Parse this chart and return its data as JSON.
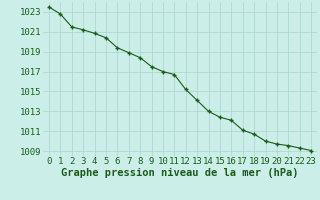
{
  "x": [
    0,
    1,
    2,
    3,
    4,
    5,
    6,
    7,
    8,
    9,
    10,
    11,
    12,
    13,
    14,
    15,
    16,
    17,
    18,
    19,
    20,
    21,
    22,
    23
  ],
  "y": [
    1023.5,
    1022.8,
    1021.5,
    1021.2,
    1020.85,
    1020.4,
    1019.4,
    1018.9,
    1018.4,
    1017.5,
    1017.0,
    1016.7,
    1015.2,
    1014.1,
    1013.0,
    1012.4,
    1012.1,
    1011.1,
    1010.7,
    1010.0,
    1009.7,
    1009.55,
    1009.3,
    1009.05
  ],
  "ylim": [
    1008.5,
    1024.0
  ],
  "yticks": [
    1009,
    1011,
    1013,
    1015,
    1017,
    1019,
    1021,
    1023
  ],
  "xticks": [
    0,
    1,
    2,
    3,
    4,
    5,
    6,
    7,
    8,
    9,
    10,
    11,
    12,
    13,
    14,
    15,
    16,
    17,
    18,
    19,
    20,
    21,
    22,
    23
  ],
  "line_color": "#1a5c1a",
  "marker_color": "#1a5c1a",
  "bg_plot": "#cceee8",
  "bg_fig": "#cceee8",
  "grid_color": "#aad4cc",
  "xlabel": "Graphe pression niveau de la mer (hPa)",
  "xlabel_color": "#1a5c1a",
  "tick_color": "#1a5c1a",
  "tick_fontsize": 6.5,
  "xlabel_fontsize": 7.5
}
